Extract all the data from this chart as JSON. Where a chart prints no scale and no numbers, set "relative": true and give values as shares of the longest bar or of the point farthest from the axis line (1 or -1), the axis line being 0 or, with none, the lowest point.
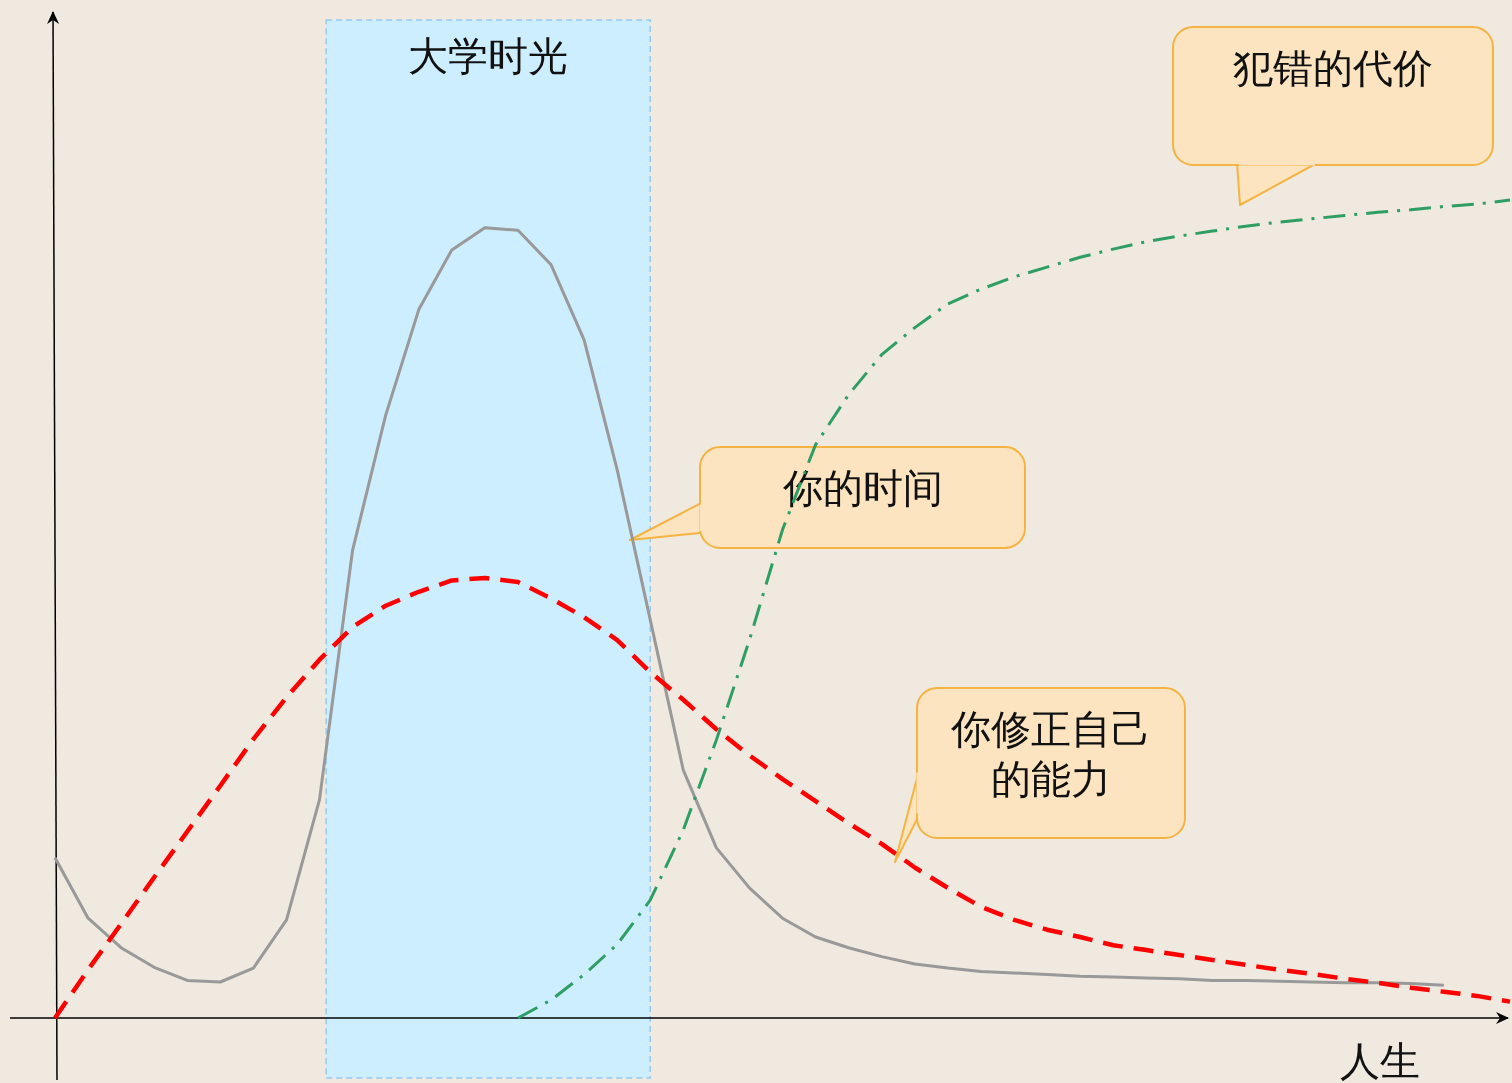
{
  "chart_data": {
    "type": "line",
    "relative": true,
    "xlabel": "人生",
    "categories": [
      null,
      null,
      null,
      null,
      null,
      null,
      null,
      null,
      null,
      null,
      null,
      null,
      null,
      null,
      null,
      null,
      null,
      null,
      null,
      null,
      null,
      null,
      null,
      null,
      null,
      null,
      null,
      null,
      null,
      null,
      null,
      null,
      null,
      null,
      null,
      null,
      null,
      null,
      null,
      null,
      null,
      null,
      null,
      null,
      null
    ],
    "series": [
      {
        "color": "#999999",
        "line_style": "solid",
        "values": [
          0.196,
          0.122,
          0.086,
          0.062,
          0.046,
          0.044,
          0.061,
          0.12,
          0.267,
          0.572,
          0.737,
          0.866,
          0.939,
          0.966,
          0.963,
          0.921,
          0.829,
          0.67,
          0.487,
          0.303,
          0.208,
          0.159,
          0.122,
          0.099,
          0.086,
          0.075,
          0.066,
          0.061,
          0.057,
          0.055,
          0.053,
          0.051,
          0.05,
          0.049,
          0.048,
          0.046,
          0.046,
          0.045,
          0.044,
          0.043,
          0.043,
          0.042,
          0.04,
          null,
          null
        ]
      },
      {
        "color": "#ff0000",
        "line_style": "dashed",
        "values": [
          0,
          0.059,
          0.115,
          0.172,
          0.228,
          0.284,
          0.341,
          0.392,
          0.438,
          0.478,
          0.504,
          0.521,
          0.535,
          0.538,
          0.533,
          0.513,
          0.49,
          0.462,
          0.423,
          0.389,
          0.353,
          0.321,
          0.292,
          0.265,
          0.238,
          0.213,
          0.184,
          0.159,
          0.136,
          0.12,
          0.108,
          0.099,
          0.089,
          0.083,
          0.077,
          0.071,
          0.065,
          0.059,
          0.054,
          0.048,
          0.043,
          0.037,
          0.032,
          0.027,
          0.02
        ]
      },
      {
        "color": "#2e9e64",
        "line_style": "dashdot",
        "values": [
          null,
          null,
          null,
          null,
          null,
          null,
          null,
          null,
          null,
          null,
          null,
          null,
          null,
          null,
          0,
          0.022,
          0.053,
          0.09,
          0.144,
          0.23,
          0.34,
          0.462,
          0.597,
          0.701,
          0.762,
          0.811,
          0.844,
          0.873,
          0.891,
          0.906,
          0.918,
          0.93,
          0.94,
          0.949,
          0.956,
          0.962,
          0.968,
          0.973,
          0.977,
          0.981,
          0.985,
          0.988,
          0.992,
          0.995,
          1
        ]
      }
    ],
    "annotations": [
      "大学时光",
      "你的时间",
      "你修正自己的能力",
      "犯错的代价"
    ]
  }
}
